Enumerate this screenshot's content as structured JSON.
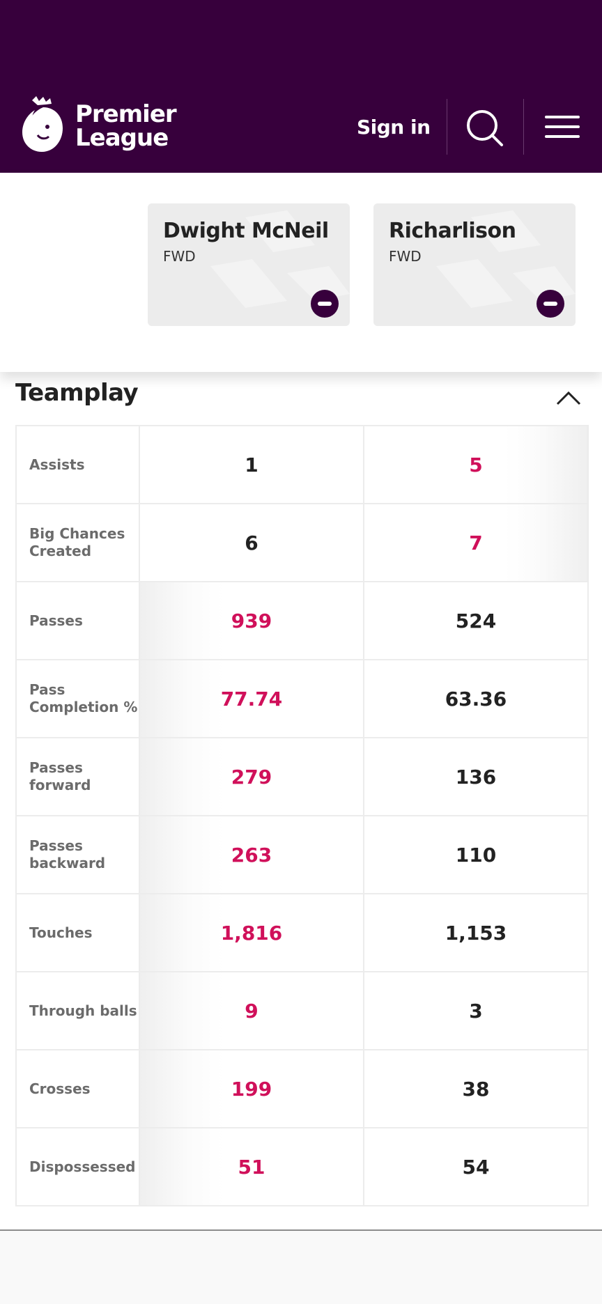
{
  "header": {
    "logo_line1": "Premier",
    "logo_line2": "League",
    "signin_label": "Sign in",
    "background": "#37003c"
  },
  "players": [
    {
      "name": "Dwight McNeil",
      "position": "FWD"
    },
    {
      "name": "Richarlison",
      "position": "FWD"
    }
  ],
  "section": {
    "title": "Teamplay"
  },
  "stats": [
    {
      "label": "Assists",
      "p1": "1",
      "p2": "5",
      "winner": 2
    },
    {
      "label": "Big Chances Created",
      "p1": "6",
      "p2": "7",
      "winner": 2
    },
    {
      "label": "Passes",
      "p1": "939",
      "p2": "524",
      "winner": 1
    },
    {
      "label": "Pass Completion %",
      "p1": "77.74",
      "p2": "63.36",
      "winner": 1
    },
    {
      "label": "Passes forward",
      "p1": "279",
      "p2": "136",
      "winner": 1
    },
    {
      "label": "Passes backward",
      "p1": "263",
      "p2": "110",
      "winner": 1
    },
    {
      "label": "Touches",
      "p1": "1,816",
      "p2": "1,153",
      "winner": 1
    },
    {
      "label": "Through balls",
      "p1": "9",
      "p2": "3",
      "winner": 1
    },
    {
      "label": "Crosses",
      "p1": "199",
      "p2": "38",
      "winner": 1
    },
    {
      "label": "Dispossessed",
      "p1": "51",
      "p2": "54",
      "winner": 1
    }
  ],
  "colors": {
    "accent": "#d0105a",
    "brand": "#37003c"
  }
}
